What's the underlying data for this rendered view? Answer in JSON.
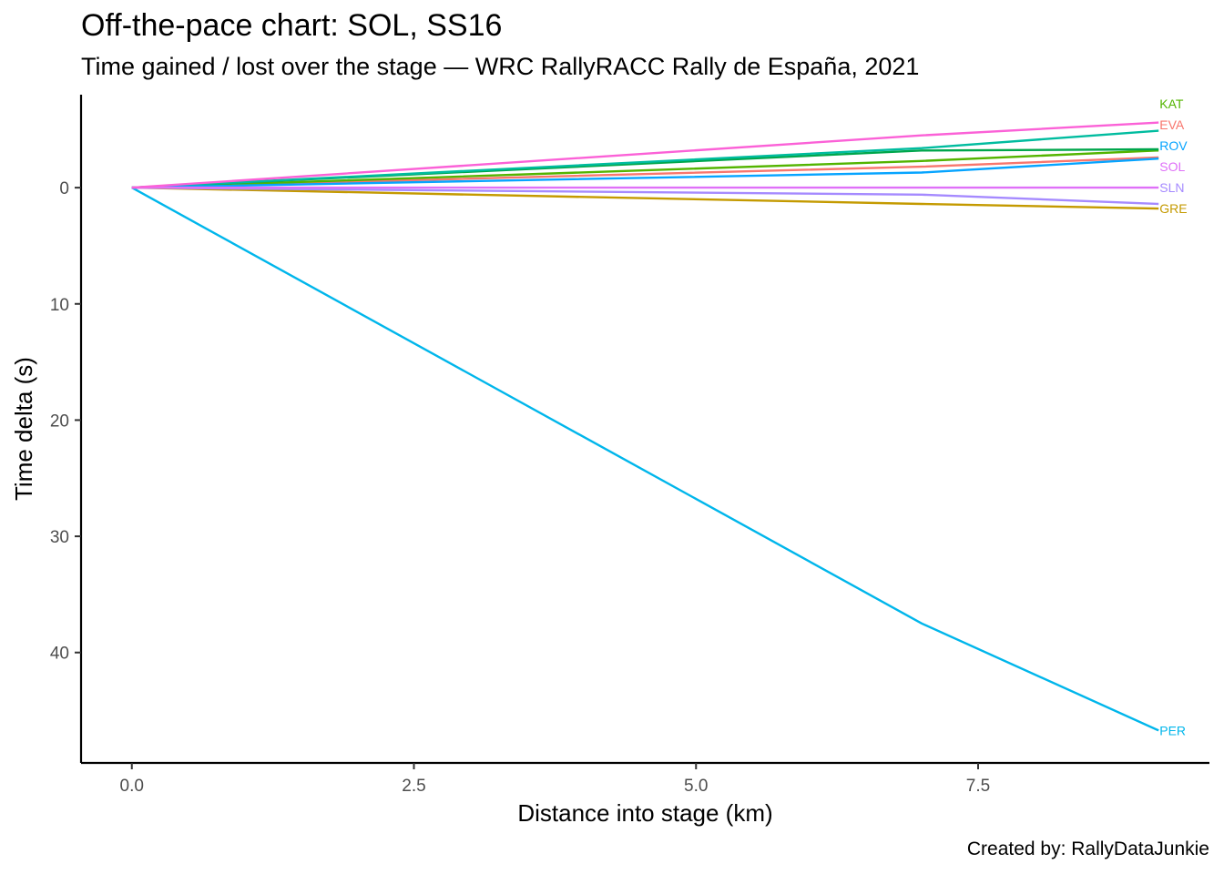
{
  "chart_data": {
    "type": "line",
    "title": "Off-the-pace chart: SOL, SS16",
    "subtitle": "Time gained / lost over the stage — WRC RallyRACC Rally de España, 2021",
    "caption": "Created by: RallyDataJunkie",
    "xlabel": "Distance into stage (km)",
    "ylabel": "Time delta (s)",
    "xlim": [
      -0.45,
      9.55
    ],
    "ylim": [
      -8,
      49.5
    ],
    "y_reversed": true,
    "x_ticks": [
      0.0,
      2.5,
      5.0,
      7.5
    ],
    "x_tick_labels": [
      "0.0",
      "2.5",
      "5.0",
      "7.5"
    ],
    "y_ticks": [
      0,
      10,
      20,
      30,
      40
    ],
    "y_tick_labels": [
      "0",
      "10",
      "20",
      "30",
      "40"
    ],
    "grid": false,
    "legend": "direct labels at line ends",
    "series": [
      {
        "color": "#F8766D",
        "x": [
          0,
          7.0,
          9.1
        ],
        "y": [
          0,
          -1.8,
          -2.6
        ]
      },
      {
        "color": "#C49A00",
        "x": [
          0,
          7.0,
          9.1
        ],
        "y": [
          0,
          1.4,
          1.8
        ]
      },
      {
        "color": "#53B400",
        "x": [
          0,
          7.0,
          9.1
        ],
        "y": [
          0,
          -2.3,
          -3.2
        ]
      },
      {
        "color": "#00A64C",
        "x": [
          0,
          7.0,
          9.1
        ],
        "y": [
          0,
          -3.2,
          -3.3
        ]
      },
      {
        "color": "#00BC9F",
        "x": [
          0,
          7.0,
          9.1
        ],
        "y": [
          0,
          -3.4,
          -4.9
        ]
      },
      {
        "color": "#00B6EB",
        "x": [
          0,
          7.0,
          9.1
        ],
        "y": [
          0,
          37.5,
          46.7
        ]
      },
      {
        "color": "#06A4FF",
        "x": [
          0,
          7.0,
          9.1
        ],
        "y": [
          0,
          -1.3,
          -2.5
        ]
      },
      {
        "color": "#A58AFF",
        "x": [
          0,
          7.0,
          9.1
        ],
        "y": [
          0,
          0.6,
          1.4
        ]
      },
      {
        "color": "#DF70F8",
        "x": [
          0,
          7.0,
          9.1
        ],
        "y": [
          0,
          0,
          0
        ]
      },
      {
        "color": "#FB61D7",
        "x": [
          0,
          7.0,
          9.1
        ],
        "y": [
          0,
          -4.5,
          -5.6
        ]
      }
    ],
    "labels": [
      {
        "text": "KAT",
        "color": "#53B400",
        "x": 9.1,
        "y": -7.2
      },
      {
        "text": "EVA",
        "color": "#F8766D",
        "x": 9.1,
        "y": -5.4
      },
      {
        "text": "ROV",
        "color": "#06A4FF",
        "x": 9.1,
        "y": -3.6
      },
      {
        "text": "SOL",
        "color": "#DF70F8",
        "x": 9.1,
        "y": -1.8
      },
      {
        "text": "SLN",
        "color": "#A58AFF",
        "x": 9.1,
        "y": 0
      },
      {
        "text": "GRE",
        "color": "#C49A00",
        "x": 9.1,
        "y": 1.8
      },
      {
        "text": "PER",
        "color": "#00B6EB",
        "x": 9.1,
        "y": 46.7
      }
    ]
  }
}
